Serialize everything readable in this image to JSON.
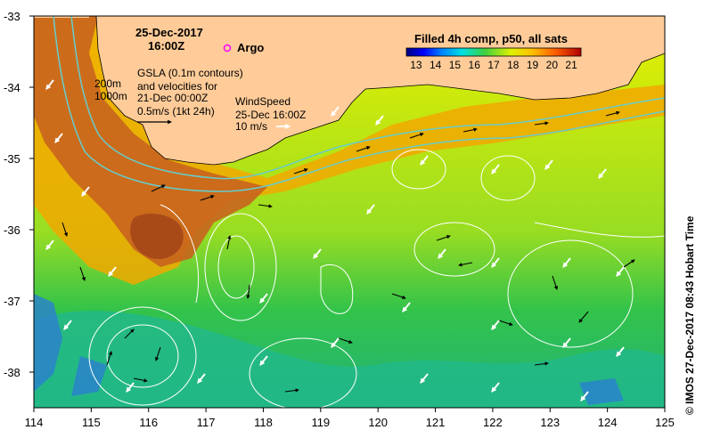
{
  "title": {
    "date": "25-Dec-2017",
    "time": "16:00Z"
  },
  "argo_label": "Argo",
  "gsla": {
    "line1": "GSLA (0.1m contours)",
    "line2": "and velocities for",
    "line3": "21-Dec 00:00Z",
    "scale": "0.5m/s (1kt 24h)"
  },
  "isobaths": [
    "200m",
    "1000m"
  ],
  "wind": {
    "line1": "WindSpeed",
    "line2": "25-Dec 16:00Z",
    "line3": "10 m/s"
  },
  "colorbar": {
    "title": "Filled 4h comp, p50, all sats",
    "ticks": [
      "13",
      "14",
      "15",
      "16",
      "17",
      "18",
      "19",
      "20",
      "21"
    ],
    "min": 13,
    "max": 22
  },
  "credit": "© IMOS 27-Dec-2017 08:43 Hobart Time",
  "axes": {
    "x_ticks": [
      "114",
      "115",
      "116",
      "117",
      "118",
      "119",
      "120",
      "121",
      "122",
      "123",
      "124",
      "125"
    ],
    "y_ticks": [
      "-33",
      "-34",
      "-35",
      "-36",
      "-37",
      "-38"
    ],
    "lon_range": [
      114,
      125
    ],
    "lat_range": [
      -38.5,
      -33
    ]
  },
  "colors": {
    "land": "#ffcc99",
    "argo": "#ff00ff",
    "isobath": "#66cccc",
    "contour": "#ffffff"
  }
}
